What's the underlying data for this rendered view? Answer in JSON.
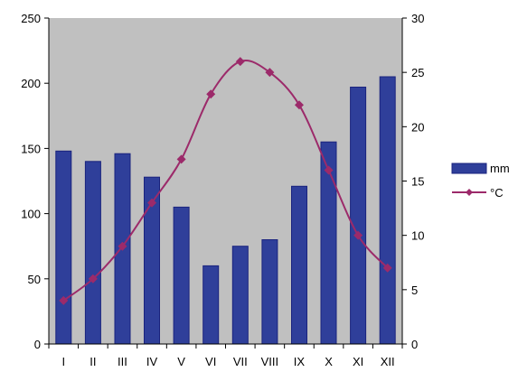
{
  "chart_data": {
    "type": "bar+line",
    "categories": [
      "I",
      "II",
      "III",
      "IV",
      "V",
      "VI",
      "VII",
      "VIII",
      "IX",
      "X",
      "XI",
      "XII"
    ],
    "series": [
      {
        "name": "mm",
        "type": "bar",
        "axis": "left",
        "values": [
          148,
          140,
          146,
          128,
          105,
          60,
          75,
          80,
          121,
          155,
          197,
          205
        ]
      },
      {
        "name": "°C",
        "type": "line",
        "axis": "right",
        "values": [
          4,
          6,
          9,
          13,
          17,
          23,
          26,
          25,
          22,
          16,
          10,
          7
        ]
      }
    ],
    "y_left": {
      "min": 0,
      "max": 250,
      "ticks": [
        0,
        50,
        100,
        150,
        200,
        250
      ]
    },
    "y_right": {
      "min": 0,
      "max": 30,
      "ticks": [
        0,
        5,
        10,
        15,
        20,
        25,
        30
      ]
    },
    "grid": false,
    "legend_position": "right",
    "colors": {
      "plot_background": "#c0c0c0",
      "bar": "#2f3f9a",
      "bar_edge": "#1a237e",
      "line": "#9c2a6a"
    }
  }
}
